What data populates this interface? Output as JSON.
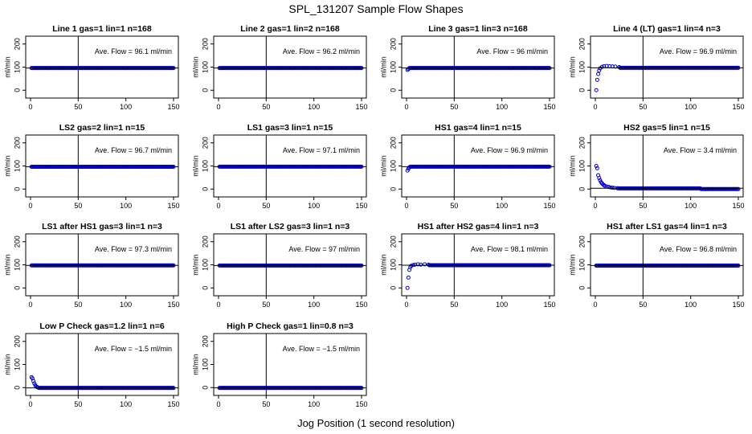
{
  "page": {
    "title": "SPL_131207  Sample Flow Shapes",
    "x_axis_label": "Jog Position (1 second resolution)",
    "y_axis_label": "ml/min"
  },
  "style": {
    "marker_color": "#0000cc",
    "axis_color": "#000000",
    "reference_line_color": "#000000"
  },
  "chart_data": [
    {
      "type": "scatter",
      "title": "Line 1 gas=1 lin=1 n=168",
      "annotation": "Ave. Flow = 96.1  ml/min",
      "xlim": [
        0,
        150
      ],
      "ylim": [
        -20,
        220
      ],
      "x_ticks": [
        0,
        50,
        100,
        150
      ],
      "y_ticks": [
        0,
        100,
        200
      ],
      "x_reference": 50,
      "y_reference": 96.1,
      "shape": "flat",
      "steady_value": 96.1,
      "ramp": []
    },
    {
      "type": "scatter",
      "title": "Line 2 gas=1 lin=2 n=168",
      "annotation": "Ave. Flow = 96.2  ml/min",
      "xlim": [
        0,
        150
      ],
      "ylim": [
        -20,
        220
      ],
      "x_ticks": [
        0,
        50,
        100,
        150
      ],
      "y_ticks": [
        0,
        100,
        200
      ],
      "x_reference": 50,
      "y_reference": 96.2,
      "shape": "flat",
      "steady_value": 96.2,
      "ramp": []
    },
    {
      "type": "scatter",
      "title": "Line 3 gas=1 lin=3 n=168",
      "annotation": "Ave. Flow = 96  ml/min",
      "xlim": [
        0,
        150
      ],
      "ylim": [
        -20,
        220
      ],
      "x_ticks": [
        0,
        50,
        100,
        150
      ],
      "y_ticks": [
        0,
        100,
        200
      ],
      "x_reference": 50,
      "y_reference": 96,
      "shape": "flat",
      "steady_value": 96,
      "ramp": [
        [
          1,
          88
        ],
        [
          2,
          92
        ]
      ]
    },
    {
      "type": "scatter",
      "title": "Line 4 (LT) gas=1 lin=4 n=3",
      "annotation": "Ave. Flow = 96.9  ml/min",
      "xlim": [
        0,
        150
      ],
      "ylim": [
        -20,
        220
      ],
      "x_ticks": [
        0,
        50,
        100,
        150
      ],
      "y_ticks": [
        0,
        100,
        200
      ],
      "x_reference": 50,
      "y_reference": 96.9,
      "shape": "flat",
      "steady_value": 96.9,
      "ramp": [
        [
          1,
          0
        ],
        [
          2,
          45
        ],
        [
          3,
          70
        ],
        [
          4,
          85
        ],
        [
          5,
          95
        ],
        [
          7,
          101
        ],
        [
          9,
          104
        ],
        [
          12,
          105
        ],
        [
          15,
          104
        ],
        [
          18,
          103
        ],
        [
          21,
          102
        ],
        [
          25,
          100
        ]
      ]
    },
    {
      "type": "scatter",
      "title": "LS2 gas=2 lin=1 n=15",
      "annotation": "Ave. Flow = 96.7  ml/min",
      "xlim": [
        0,
        150
      ],
      "ylim": [
        -20,
        220
      ],
      "x_ticks": [
        0,
        50,
        100,
        150
      ],
      "y_ticks": [
        0,
        100,
        200
      ],
      "x_reference": 50,
      "y_reference": 96.7,
      "shape": "flat",
      "steady_value": 96.7,
      "ramp": []
    },
    {
      "type": "scatter",
      "title": "LS1 gas=3 lin=1 n=15",
      "annotation": "Ave. Flow = 97.1  ml/min",
      "xlim": [
        0,
        150
      ],
      "ylim": [
        -20,
        220
      ],
      "x_ticks": [
        0,
        50,
        100,
        150
      ],
      "y_ticks": [
        0,
        100,
        200
      ],
      "x_reference": 50,
      "y_reference": 97.1,
      "shape": "flat",
      "steady_value": 97.1,
      "ramp": []
    },
    {
      "type": "scatter",
      "title": "HS1 gas=4 lin=1 n=15",
      "annotation": "Ave. Flow = 96.9  ml/min",
      "xlim": [
        0,
        150
      ],
      "ylim": [
        -20,
        220
      ],
      "x_ticks": [
        0,
        50,
        100,
        150
      ],
      "y_ticks": [
        0,
        100,
        200
      ],
      "x_reference": 50,
      "y_reference": 96.9,
      "shape": "flat",
      "steady_value": 96.9,
      "ramp": [
        [
          1,
          80
        ],
        [
          2,
          88
        ],
        [
          3,
          94
        ],
        [
          4,
          97
        ]
      ]
    },
    {
      "type": "scatter",
      "title": "HS2 gas=5 lin=1 n=15",
      "annotation": "Ave. Flow = 3.4  ml/min",
      "xlim": [
        0,
        150
      ],
      "ylim": [
        -20,
        220
      ],
      "x_ticks": [
        0,
        50,
        100,
        150
      ],
      "y_ticks": [
        0,
        100,
        200
      ],
      "x_reference": 50,
      "y_reference": 3.4,
      "shape": "decay",
      "steady_value": 3,
      "ramp": [
        [
          1,
          100
        ],
        [
          2,
          90
        ],
        [
          3,
          60
        ],
        [
          4,
          48
        ],
        [
          5,
          38
        ],
        [
          6,
          30
        ],
        [
          7,
          25
        ],
        [
          8,
          20
        ],
        [
          9,
          17
        ],
        [
          10,
          14
        ],
        [
          12,
          11
        ],
        [
          14,
          9
        ],
        [
          16,
          7
        ],
        [
          18,
          6
        ],
        [
          20,
          5
        ],
        [
          23,
          4
        ]
      ],
      "tail_value": 0
    },
    {
      "type": "scatter",
      "title": "LS1 after HS1 gas=3 lin=1 n=3",
      "annotation": "Ave. Flow = 97.3  ml/min",
      "xlim": [
        0,
        150
      ],
      "ylim": [
        -20,
        220
      ],
      "x_ticks": [
        0,
        50,
        100,
        150
      ],
      "y_ticks": [
        0,
        100,
        200
      ],
      "x_reference": 50,
      "y_reference": 97.3,
      "shape": "flat",
      "steady_value": 97.3,
      "ramp": []
    },
    {
      "type": "scatter",
      "title": "LS1 after LS2 gas=3 lin=1 n=3",
      "annotation": "Ave. Flow = 97  ml/min",
      "xlim": [
        0,
        150
      ],
      "ylim": [
        -20,
        220
      ],
      "x_ticks": [
        0,
        50,
        100,
        150
      ],
      "y_ticks": [
        0,
        100,
        200
      ],
      "x_reference": 50,
      "y_reference": 97,
      "shape": "flat",
      "steady_value": 97,
      "ramp": []
    },
    {
      "type": "scatter",
      "title": "HS1 after HS2 gas=4 lin=1 n=3",
      "annotation": "Ave. Flow = 98.1  ml/min",
      "xlim": [
        0,
        150
      ],
      "ylim": [
        -20,
        220
      ],
      "x_ticks": [
        0,
        50,
        100,
        150
      ],
      "y_ticks": [
        0,
        100,
        200
      ],
      "x_reference": 50,
      "y_reference": 98.1,
      "shape": "flat",
      "steady_value": 98.1,
      "ramp": [
        [
          1,
          0
        ],
        [
          2,
          45
        ],
        [
          3,
          78
        ],
        [
          4,
          90
        ],
        [
          5,
          96
        ],
        [
          7,
          99
        ],
        [
          9,
          101
        ],
        [
          12,
          102
        ],
        [
          15,
          101
        ],
        [
          19,
          102
        ],
        [
          23,
          101
        ]
      ]
    },
    {
      "type": "scatter",
      "title": "HS1 after LS1 gas=4 lin=1 n=3",
      "annotation": "Ave. Flow = 96.8  ml/min",
      "xlim": [
        0,
        150
      ],
      "ylim": [
        -20,
        220
      ],
      "x_ticks": [
        0,
        50,
        100,
        150
      ],
      "y_ticks": [
        0,
        100,
        200
      ],
      "x_reference": 50,
      "y_reference": 96.8,
      "shape": "flat",
      "steady_value": 96.8,
      "ramp": []
    },
    {
      "type": "scatter",
      "title": "Low P Check gas=1.2 lin=1 n=6",
      "annotation": "Ave. Flow = −1.5  ml/min",
      "xlim": [
        0,
        150
      ],
      "ylim": [
        -20,
        220
      ],
      "x_ticks": [
        0,
        50,
        100,
        150
      ],
      "y_ticks": [
        0,
        100,
        200
      ],
      "x_reference": 50,
      "y_reference": -1.5,
      "shape": "flat",
      "steady_value": -1.5,
      "ramp": [
        [
          1,
          45
        ],
        [
          2,
          40
        ],
        [
          3,
          28
        ],
        [
          4,
          18
        ],
        [
          5,
          10
        ],
        [
          6,
          5
        ],
        [
          7,
          2
        ],
        [
          8,
          0
        ]
      ]
    },
    {
      "type": "scatter",
      "title": "High P Check gas=1 lin=0.8 n=3",
      "annotation": "Ave. Flow = −1.5  ml/min",
      "xlim": [
        0,
        150
      ],
      "ylim": [
        -20,
        220
      ],
      "x_ticks": [
        0,
        50,
        100,
        150
      ],
      "y_ticks": [
        0,
        100,
        200
      ],
      "x_reference": 50,
      "y_reference": -1.5,
      "shape": "flat",
      "steady_value": -1.5,
      "ramp": []
    }
  ]
}
